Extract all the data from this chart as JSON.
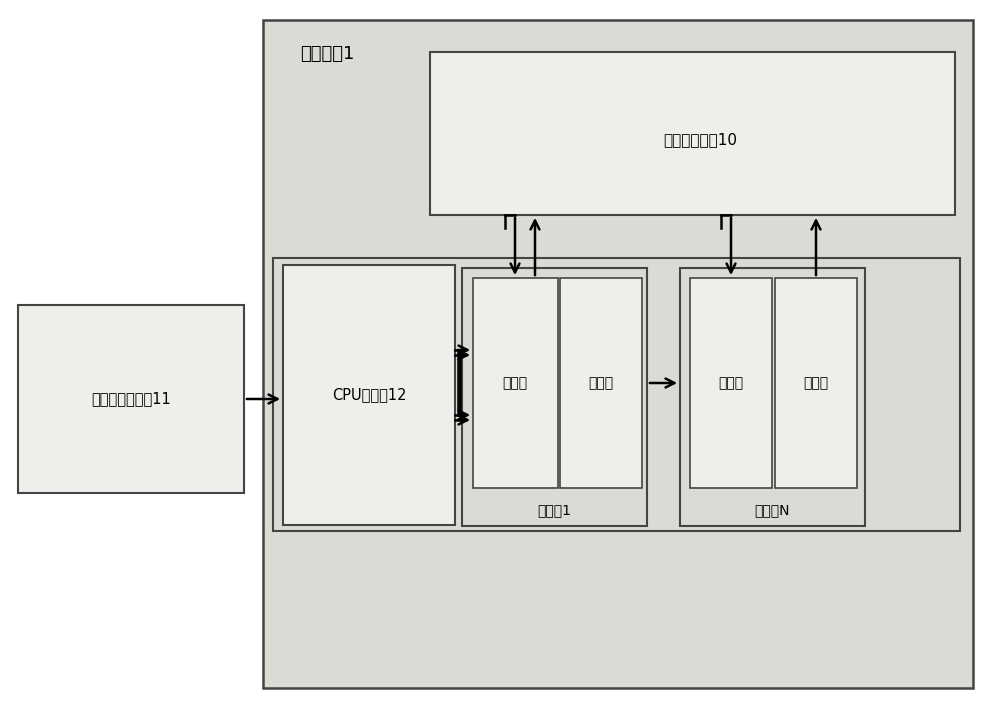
{
  "bg_color": "#ffffff",
  "outer_box_fill": "#dcdad6",
  "outer_box_edge": "#333333",
  "white_box_fill": "#f0eeea",
  "inner_box_fill": "#e8e6e2",
  "title": "系统设备1",
  "data_switch_label": "数据交换系统10",
  "admin_label": "管理员设备终端11",
  "cpu_label": "CPU控制模12",
  "optical_module1_label": "光模块1",
  "optical_moduleN_label": "光模块N",
  "tx_label": "光发送",
  "rx_label": "光接收",
  "font_size_title": 13,
  "font_size_label": 11,
  "font_size_box": 10,
  "font_size_inner": 10
}
